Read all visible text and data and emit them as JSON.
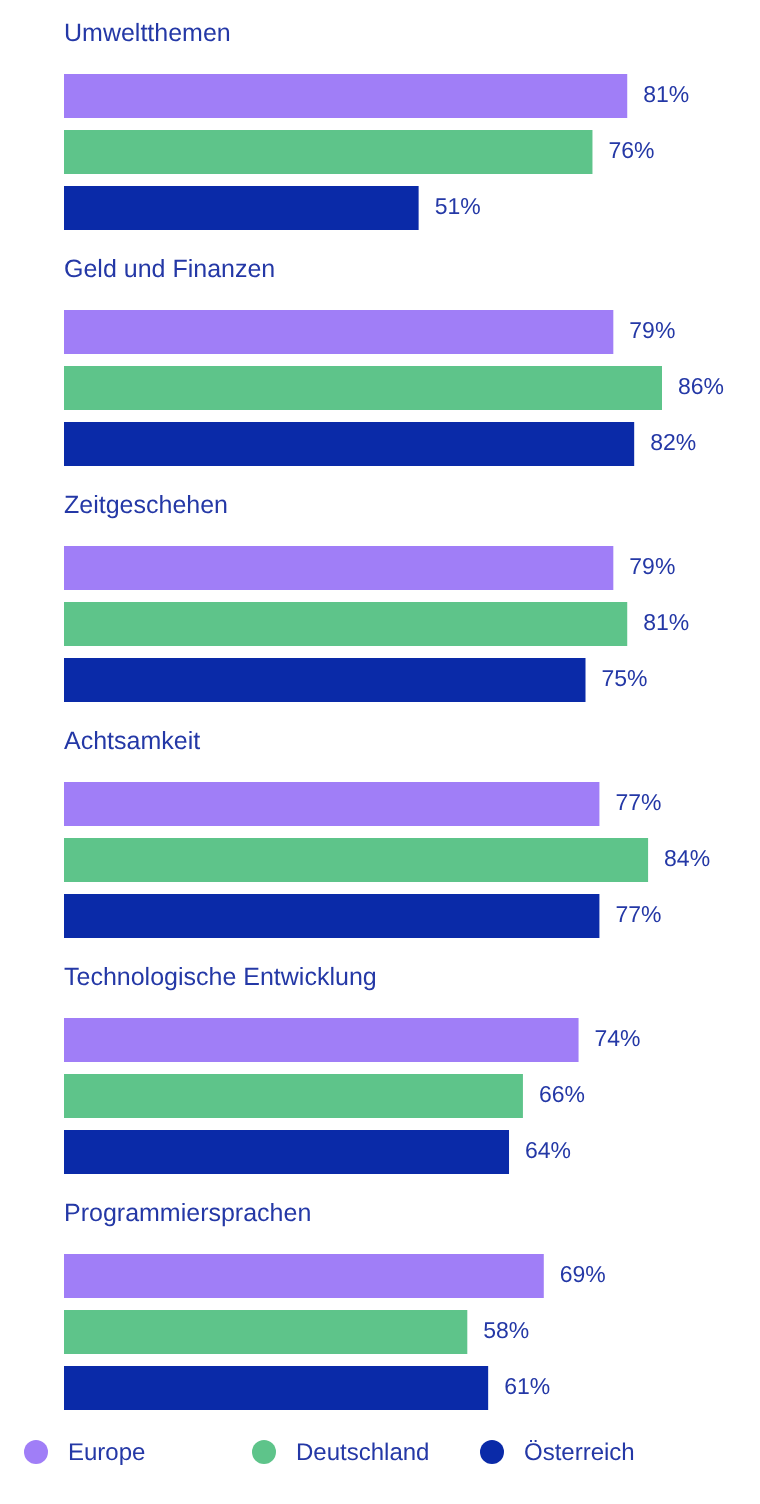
{
  "chart_data": {
    "type": "bar",
    "orientation": "horizontal",
    "legend": "bottom",
    "categories": [
      "Umweltthemen",
      "Geld und Finanzen",
      "Zeitgeschehen",
      "Achtsamkeit",
      "Technologische Entwicklung",
      "Programmiersprachen"
    ],
    "series": [
      {
        "name": "Europe",
        "color": "#a07ef7",
        "values": [
          81,
          79,
          79,
          77,
          74,
          69
        ],
        "value_labels": [
          "81%",
          "79%",
          "79%",
          "77%",
          "74%",
          "69%"
        ]
      },
      {
        "name": "Deutschland",
        "color": "#5ec48a",
        "values": [
          76,
          86,
          81,
          84,
          66,
          58
        ],
        "value_labels": [
          "76%",
          "86%",
          "81%",
          "84%",
          "66%",
          "58%"
        ]
      },
      {
        "name": "Österreich",
        "color": "#0a2aa8",
        "values": [
          51,
          82,
          75,
          77,
          64,
          61
        ],
        "value_labels": [
          "51%",
          "82%",
          "75%",
          "77%",
          "64%",
          "61%"
        ]
      }
    ]
  }
}
